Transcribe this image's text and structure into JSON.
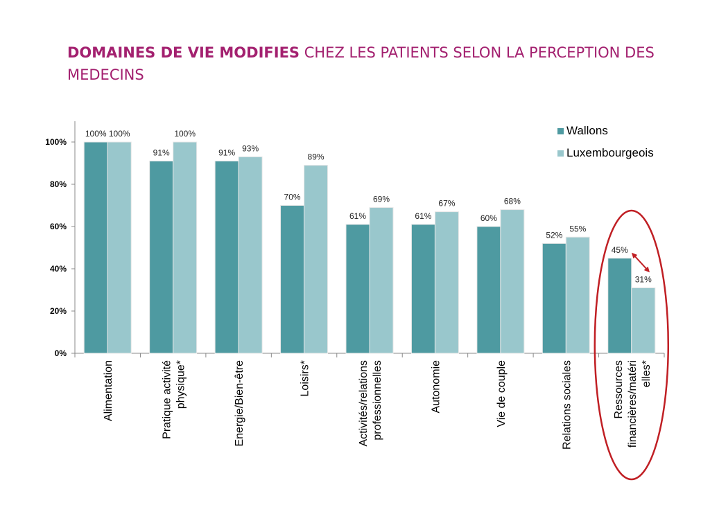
{
  "slide": {
    "title_bold": "DOMAINES DE VIE MODIFIES",
    "title_rest": " CHEZ LES PATIENTS SELON LA PERCEPTION DES MEDECINS"
  },
  "chart_data": {
    "type": "bar",
    "title": "",
    "xlabel": "",
    "ylabel": "",
    "ylim": [
      0,
      100
    ],
    "yticks": [
      "0%",
      "20%",
      "40%",
      "60%",
      "80%",
      "100%"
    ],
    "categories": [
      [
        "Alimentation"
      ],
      [
        "Pratique activité",
        "physique*"
      ],
      [
        "Energie/Bien-être"
      ],
      [
        "Loisirs*"
      ],
      [
        "Activités/relations",
        "professionnelles"
      ],
      [
        "Autonomie"
      ],
      [
        "Vie de couple"
      ],
      [
        "Relations sociales"
      ],
      [
        "Ressources",
        "financières/matéri",
        "elles*"
      ]
    ],
    "series": [
      {
        "name": "Wallons",
        "color": "#4e9aa1",
        "values": [
          100,
          91,
          91,
          70,
          61,
          61,
          60,
          52,
          45
        ],
        "labels": [
          "100%",
          "91%",
          "91%",
          "70%",
          "61%",
          "61%",
          "60%",
          "52%",
          "45%"
        ]
      },
      {
        "name": "Luxembourgeois",
        "color": "#99c7cc",
        "values": [
          100,
          100,
          93,
          89,
          69,
          67,
          68,
          55,
          31
        ],
        "labels": [
          "100%",
          "100%",
          "93%",
          "89%",
          "69%",
          "67%",
          "68%",
          "55%",
          "31%"
        ]
      }
    ],
    "legend_position": "top-right",
    "grid": false,
    "annotation": {
      "type": "ellipse-highlight",
      "category_index": 8,
      "color": "#c01f24",
      "arrow": "double-headed arrow between the two bars"
    }
  }
}
